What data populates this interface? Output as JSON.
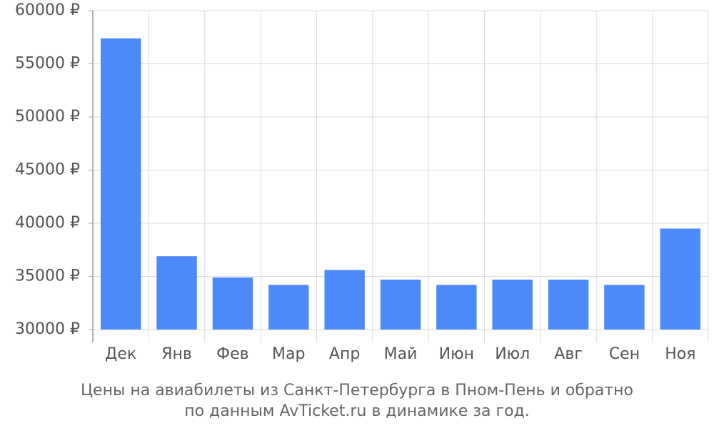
{
  "chart_data": {
    "type": "bar",
    "title": [
      "Цены на авиабилеты из Санкт-Петербурга в Пном-Пень и обратно",
      "по данным AvTicket.ru в динамике за год."
    ],
    "categories": [
      "Дек",
      "Янв",
      "Фев",
      "Мар",
      "Апр",
      "Май",
      "Июн",
      "Июл",
      "Авг",
      "Сен",
      "Ноя"
    ],
    "values": [
      57400,
      36900,
      34900,
      34200,
      35600,
      34700,
      34200,
      34700,
      34700,
      34200,
      39500
    ],
    "color": "#4d8af9",
    "ylim": [
      30000,
      60000
    ],
    "yticks": [
      {
        "value": 30000,
        "label": "30000 ₽"
      },
      {
        "value": 35000,
        "label": "35000 ₽"
      },
      {
        "value": 40000,
        "label": "40000 ₽"
      },
      {
        "value": 45000,
        "label": "45000 ₽"
      },
      {
        "value": 50000,
        "label": "50000 ₽"
      },
      {
        "value": 55000,
        "label": "55000 ₽"
      },
      {
        "value": 60000,
        "label": "60000 ₽"
      }
    ],
    "grid": true
  }
}
